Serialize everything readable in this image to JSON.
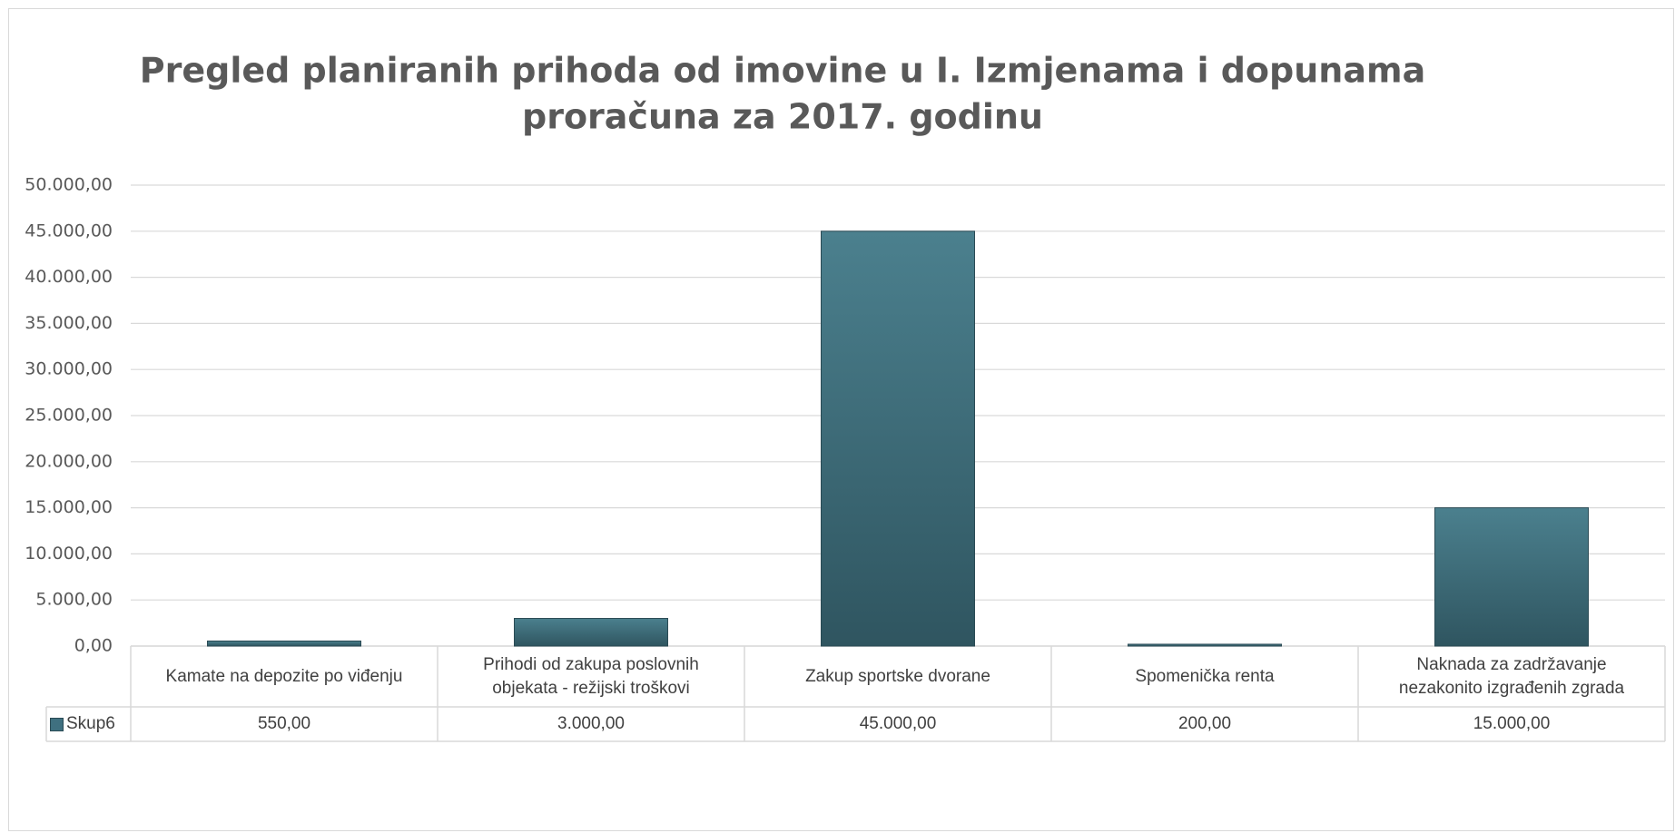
{
  "chart_data": {
    "type": "bar",
    "title": [
      "Pregled planiranih prihoda od imovine u I. Izmjenama i dopunama",
      "proračuna za 2017. godinu"
    ],
    "categories": [
      "Kamate na depozite po viđenju",
      "Prihodi od zakupa poslovnih objekata - režijski troškovi",
      "Zakup sportske dvorane",
      "Spomenička renta",
      "Naknada za zadržavanje nezakonito izgrađenih zgrada"
    ],
    "series": [
      {
        "name": "Skup6",
        "color": "#3f7080",
        "values": [
          550,
          3000,
          45000,
          200,
          15000
        ],
        "value_labels": [
          "550,00",
          "3.000,00",
          "45.000,00",
          "200,00",
          "15.000,00"
        ]
      }
    ],
    "ylim": [
      0,
      50000
    ],
    "yticks": [
      {
        "value": 0,
        "label": "0,00"
      },
      {
        "value": 5000,
        "label": "5.000,00"
      },
      {
        "value": 10000,
        "label": "10.000,00"
      },
      {
        "value": 15000,
        "label": "15.000,00"
      },
      {
        "value": 20000,
        "label": "20.000,00"
      },
      {
        "value": 25000,
        "label": "25.000,00"
      },
      {
        "value": 30000,
        "label": "30.000,00"
      },
      {
        "value": 35000,
        "label": "35.000,00"
      },
      {
        "value": 40000,
        "label": "40.000,00"
      },
      {
        "value": 45000,
        "label": "45.000,00"
      },
      {
        "value": 50000,
        "label": "50.000,00"
      }
    ],
    "grid": true
  }
}
